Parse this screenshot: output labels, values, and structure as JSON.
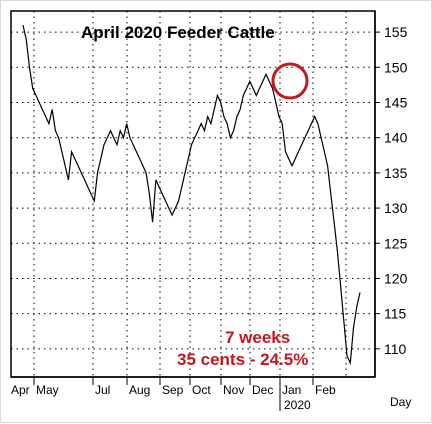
{
  "chart_data": {
    "type": "line",
    "title": "April 2020 Feeder Cattle",
    "xlabel": "Day",
    "ylabel": "",
    "ylim": [
      106,
      158
    ],
    "yticks": [
      110,
      115,
      120,
      125,
      130,
      135,
      140,
      145,
      150,
      155
    ],
    "x_tick_labels": [
      "Apr",
      "May",
      "Jul",
      "Aug",
      "Sep",
      "Oct",
      "Nov",
      "Dec",
      "Jan",
      "Feb"
    ],
    "x_secondary_label": "2020",
    "grid": true,
    "annotations": [
      "7 weeks",
      "35 cents - 24.5%"
    ],
    "highlight": {
      "label": "peak",
      "value": 149.5
    },
    "line_color": "#000000",
    "annotation_color": "#c0191f",
    "series": [
      {
        "values": [
          156,
          154,
          150,
          147,
          146,
          145,
          144,
          143,
          142,
          144,
          141,
          140,
          138,
          136,
          134,
          138,
          137,
          136,
          135,
          134,
          133,
          132,
          131,
          135,
          137,
          139,
          140,
          141,
          140,
          139,
          141,
          140,
          142,
          140,
          139,
          138,
          137,
          136,
          135,
          132,
          128,
          134,
          133,
          132,
          131,
          130,
          129,
          130,
          131,
          133,
          135,
          137,
          139,
          140,
          141,
          142,
          141,
          143,
          142,
          144,
          146,
          145,
          143,
          142,
          140,
          141,
          143,
          144,
          146,
          147,
          148,
          147,
          146,
          147,
          148,
          149,
          148,
          147,
          145,
          143,
          142,
          138,
          137,
          136,
          137,
          138,
          139,
          140,
          141,
          142,
          143,
          142,
          140,
          138,
          136,
          132,
          128,
          124,
          119,
          114,
          109,
          108,
          113,
          116,
          118
        ]
      }
    ]
  }
}
